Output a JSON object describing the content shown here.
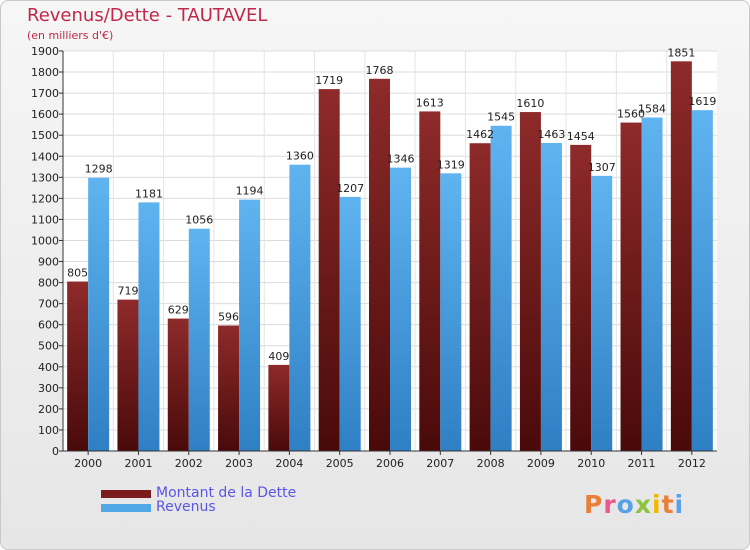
{
  "title": "Revenus/Dette - TAUTAVEL",
  "subtitle": "(en milliers d'€)",
  "logo_text": "Proxiti",
  "colors": {
    "dette": "#7a1c1c",
    "revenus": "#52a8e6",
    "title": "#c0284a",
    "legend_text": "#5a55e6",
    "logo": [
      "#e8803a",
      "#e85a8a",
      "#5aa0e6",
      "#8cc63f",
      "#f2b800",
      "#e8803a",
      "#5aa0e6"
    ]
  },
  "legend": [
    {
      "label": "Montant de la Dette",
      "color": "#7a1c1c"
    },
    {
      "label": "Revenus",
      "color": "#52a8e6"
    }
  ],
  "chart_data": {
    "type": "bar",
    "categories": [
      "2000",
      "2001",
      "2002",
      "2003",
      "2004",
      "2005",
      "2006",
      "2007",
      "2008",
      "2009",
      "2010",
      "2011",
      "2012"
    ],
    "series": [
      {
        "name": "Montant de la Dette",
        "values": [
          805,
          719,
          629,
          596,
          409,
          1719,
          1768,
          1613,
          1462,
          1610,
          1454,
          1560,
          1851
        ]
      },
      {
        "name": "Revenus",
        "values": [
          1298,
          1181,
          1056,
          1194,
          1360,
          1207,
          1346,
          1319,
          1545,
          1463,
          1307,
          1584,
          1619
        ]
      }
    ],
    "value_labels": [
      [
        "805",
        "719",
        "629",
        "596",
        "409",
        "1719",
        "1768",
        "1613",
        "1462",
        "1610",
        "1454",
        "1560",
        "1851"
      ],
      [
        "1298",
        "1181",
        "1056",
        "1194",
        "1360",
        "1207",
        "1346",
        "1319",
        "1545",
        "1463",
        "1307",
        "1584",
        "1619"
      ]
    ],
    "ylim": [
      0,
      1900
    ],
    "ytick_step": 100,
    "grid": true,
    "legend_position": "bottom-left"
  }
}
